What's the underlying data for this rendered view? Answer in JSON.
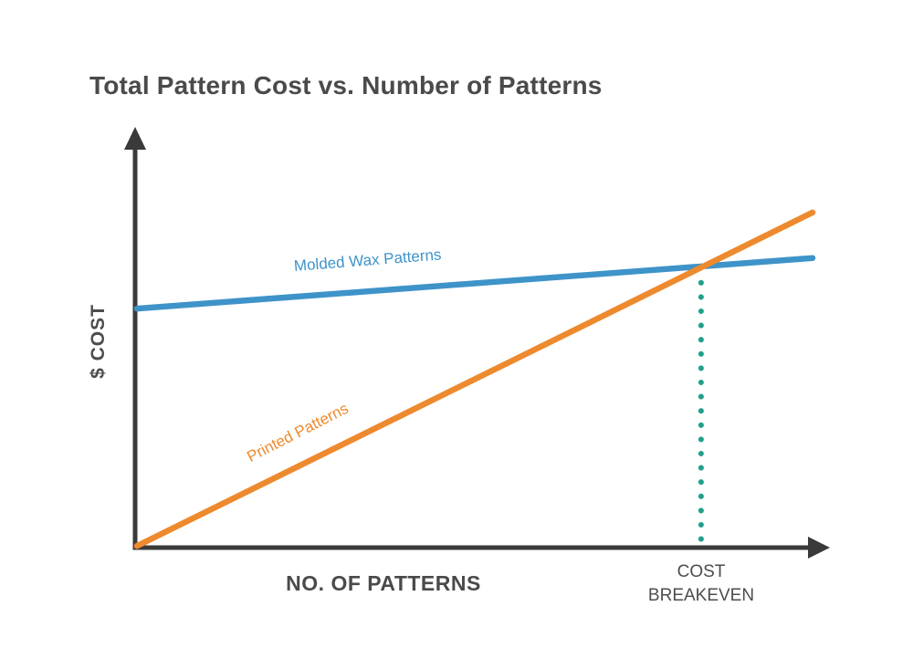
{
  "chart_data": {
    "type": "line",
    "title": "Total Pattern Cost vs. Number of Patterns",
    "xlabel": "NO. OF PATTERNS",
    "ylabel": "$ COST",
    "x_axis_numeric": false,
    "y_axis_numeric": false,
    "grid": false,
    "legend_position": "labels-on-lines",
    "axis_color": "#3a3a3a",
    "series": [
      {
        "name": "Molded Wax Patterns",
        "color": "#3E93C9",
        "x_norm": [
          0,
          1
        ],
        "y_norm": [
          0.582,
          0.705
        ]
      },
      {
        "name": "Printed Patterns",
        "color": "#EE8A2E",
        "x_norm": [
          0,
          1
        ],
        "y_norm": [
          0.004,
          0.816
        ]
      }
    ],
    "annotations": [
      {
        "label": "COST BREAKEVEN",
        "type": "vertical-dotted-line",
        "color": "#21A08B",
        "x_norm": 0.835,
        "y_norm_top": 0.645,
        "y_norm_bottom": 0.019
      }
    ]
  }
}
